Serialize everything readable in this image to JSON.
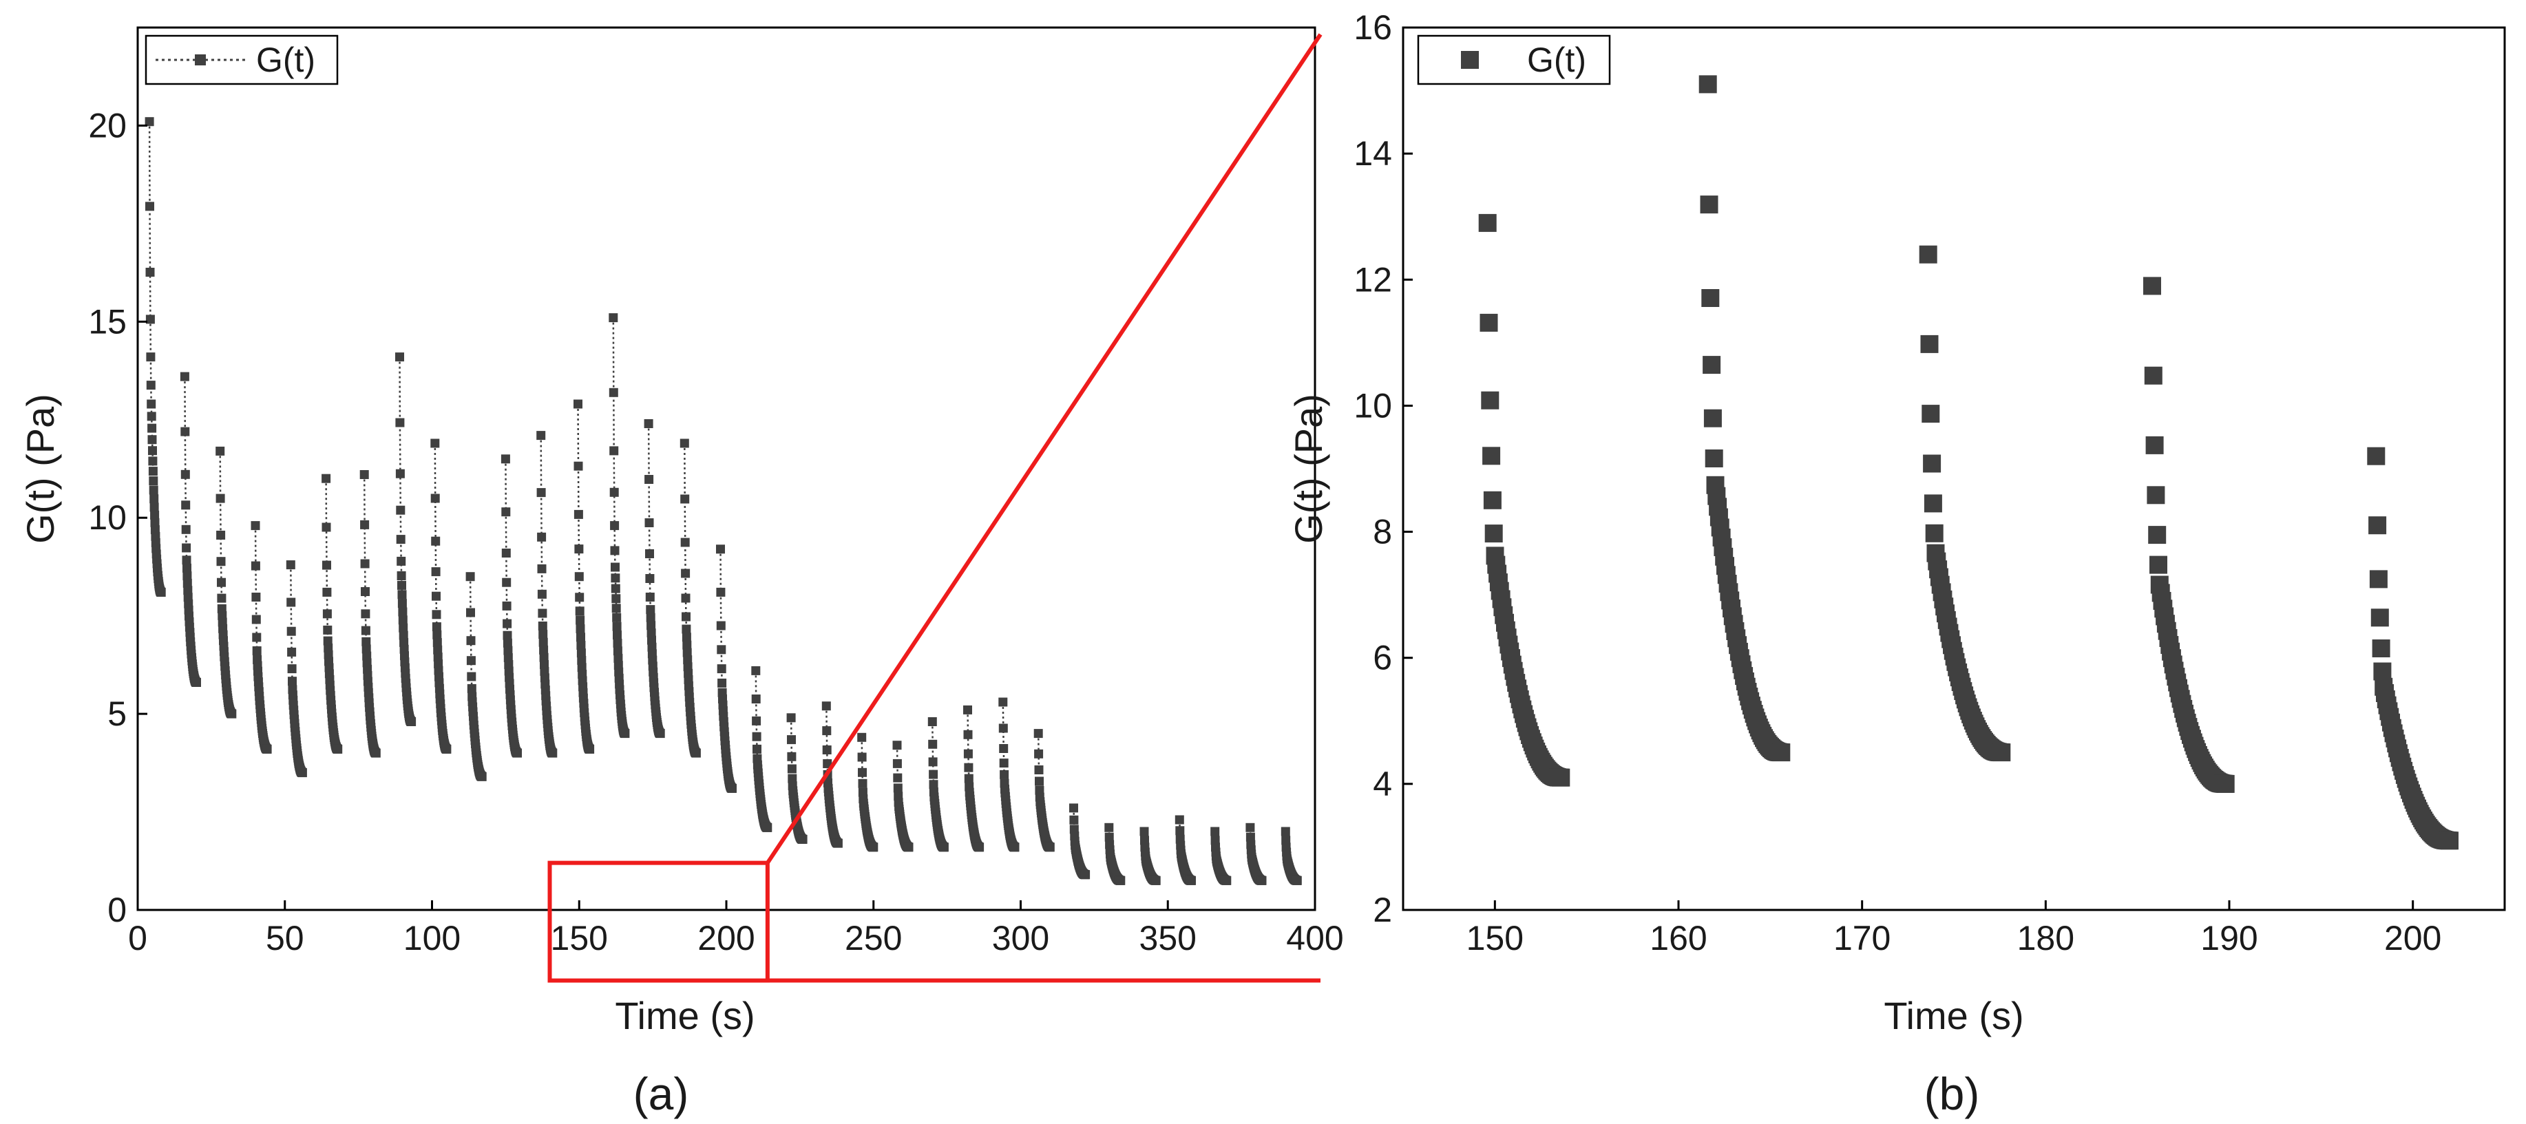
{
  "chart_data": [
    {
      "id": "a",
      "type": "scatter",
      "panel_label": "(a)",
      "xlabel": "Time (s)",
      "ylabel": "G(t) (Pa)",
      "xlim": [
        0,
        400
      ],
      "ylim": [
        0,
        22.5
      ],
      "xticks": [
        0,
        50,
        100,
        150,
        200,
        250,
        300,
        350,
        400
      ],
      "yticks": [
        0,
        5,
        10,
        15,
        20
      ],
      "legend": {
        "label": "G(t)",
        "position": "top-left",
        "marker": "square",
        "line": "dotted"
      },
      "marker_color": "#404040",
      "connect_with_dotted_line": true,
      "zoom_box": {
        "x_range": [
          140,
          214
        ],
        "y_range": [
          -1.8,
          1.2
        ],
        "target_panel": "b"
      },
      "series": [
        {
          "name": "G(t)",
          "relaxation_cycles": [
            {
              "t0": 4,
              "dur": 4,
              "peak": 20.1,
              "end": 8.1
            },
            {
              "t0": 16,
              "dur": 4,
              "peak": 13.6,
              "end": 5.8
            },
            {
              "t0": 28,
              "dur": 4,
              "peak": 11.7,
              "end": 5.0
            },
            {
              "t0": 40,
              "dur": 4,
              "peak": 9.8,
              "end": 4.1
            },
            {
              "t0": 52,
              "dur": 4,
              "peak": 8.8,
              "end": 3.5
            },
            {
              "t0": 64,
              "dur": 4,
              "peak": 11.0,
              "end": 4.1
            },
            {
              "t0": 77,
              "dur": 4,
              "peak": 11.1,
              "end": 4.0
            },
            {
              "t0": 89,
              "dur": 4,
              "peak": 14.1,
              "end": 4.8
            },
            {
              "t0": 101,
              "dur": 4,
              "peak": 11.9,
              "end": 4.1
            },
            {
              "t0": 113,
              "dur": 4,
              "peak": 8.5,
              "end": 3.4
            },
            {
              "t0": 125,
              "dur": 4,
              "peak": 11.5,
              "end": 4.0
            },
            {
              "t0": 137,
              "dur": 4,
              "peak": 12.1,
              "end": 4.0
            },
            {
              "t0": 149.6,
              "dur": 4,
              "peak": 12.9,
              "end": 4.1
            },
            {
              "t0": 161.6,
              "dur": 4,
              "peak": 15.1,
              "end": 4.5
            },
            {
              "t0": 173.6,
              "dur": 4,
              "peak": 12.4,
              "end": 4.5
            },
            {
              "t0": 185.8,
              "dur": 4,
              "peak": 11.9,
              "end": 4.0
            },
            {
              "t0": 198,
              "dur": 4,
              "peak": 9.2,
              "end": 3.1
            },
            {
              "t0": 210,
              "dur": 4,
              "peak": 6.1,
              "end": 2.1
            },
            {
              "t0": 222,
              "dur": 4,
              "peak": 4.9,
              "end": 1.8
            },
            {
              "t0": 234,
              "dur": 4,
              "peak": 5.2,
              "end": 1.7
            },
            {
              "t0": 246,
              "dur": 4,
              "peak": 4.4,
              "end": 1.6
            },
            {
              "t0": 258,
              "dur": 4,
              "peak": 4.2,
              "end": 1.6
            },
            {
              "t0": 270,
              "dur": 4,
              "peak": 4.8,
              "end": 1.6
            },
            {
              "t0": 282,
              "dur": 4,
              "peak": 5.1,
              "end": 1.6
            },
            {
              "t0": 294,
              "dur": 4,
              "peak": 5.3,
              "end": 1.6
            },
            {
              "t0": 306,
              "dur": 4,
              "peak": 4.5,
              "end": 1.6
            },
            {
              "t0": 318,
              "dur": 4,
              "peak": 2.6,
              "end": 0.9
            },
            {
              "t0": 330,
              "dur": 4,
              "peak": 2.1,
              "end": 0.75
            },
            {
              "t0": 342,
              "dur": 4,
              "peak": 2.0,
              "end": 0.75
            },
            {
              "t0": 354,
              "dur": 4,
              "peak": 2.3,
              "end": 0.75
            },
            {
              "t0": 366,
              "dur": 4,
              "peak": 2.0,
              "end": 0.75
            },
            {
              "t0": 378,
              "dur": 4,
              "peak": 2.1,
              "end": 0.75
            },
            {
              "t0": 390,
              "dur": 4,
              "peak": 2.0,
              "end": 0.75
            }
          ]
        }
      ]
    },
    {
      "id": "b",
      "type": "scatter",
      "panel_label": "(b)",
      "xlabel": "Time (s)",
      "ylabel": "G(t) (Pa)",
      "xlim": [
        145,
        205
      ],
      "ylim": [
        2,
        16
      ],
      "xticks": [
        150,
        160,
        170,
        180,
        190,
        200
      ],
      "yticks": [
        2,
        4,
        6,
        8,
        10,
        12,
        14,
        16
      ],
      "legend": {
        "label": "G(t)",
        "position": "top-left",
        "marker": "square",
        "line": "none"
      },
      "marker_color": "#404040",
      "connect_with_dotted_line": false,
      "series": [
        {
          "name": "G(t)",
          "relaxation_cycles": [
            {
              "t0": 149.6,
              "dur": 4,
              "peak": 12.9,
              "end": 4.1
            },
            {
              "t0": 161.6,
              "dur": 4,
              "peak": 15.1,
              "end": 4.5
            },
            {
              "t0": 173.6,
              "dur": 4,
              "peak": 12.4,
              "end": 4.5
            },
            {
              "t0": 185.8,
              "dur": 4,
              "peak": 11.9,
              "end": 4.0
            },
            {
              "t0": 198,
              "dur": 4,
              "peak": 9.2,
              "end": 3.1
            }
          ]
        }
      ]
    }
  ]
}
